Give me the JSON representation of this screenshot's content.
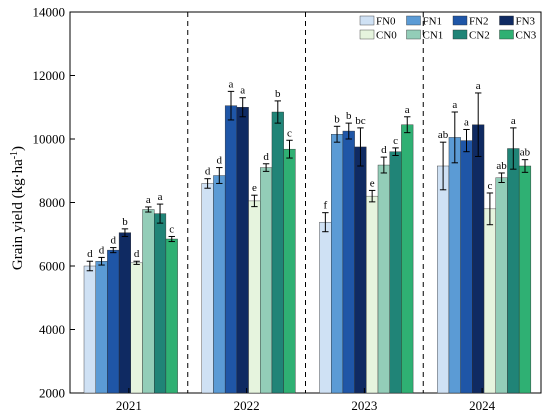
{
  "chart_data": {
    "type": "bar",
    "categories": [
      "2021",
      "2022",
      "2023",
      "2024"
    ],
    "ylabel_main": "Grain yield (kg·ha",
    "ylabel_sup": "-1",
    "ylabel_close": ")",
    "xlabel": "",
    "ylim": [
      2000,
      14000
    ],
    "yticks": [
      2000,
      4000,
      6000,
      8000,
      10000,
      12000,
      14000
    ],
    "grid": false,
    "legend_position": "top-right",
    "series": [
      {
        "name": "FN0",
        "color": "#cfe1f4",
        "values": [
          6000,
          8600,
          7380,
          9150
        ],
        "errors": [
          150,
          150,
          300,
          750
        ],
        "sig": [
          "d",
          "d",
          "f",
          "ab"
        ]
      },
      {
        "name": "FN1",
        "color": "#5b9bd5",
        "values": [
          6150,
          8850,
          10150,
          10050
        ],
        "errors": [
          120,
          250,
          250,
          800
        ],
        "sig": [
          "d",
          "d",
          "b",
          "a"
        ]
      },
      {
        "name": "FN2",
        "color": "#1f56a7",
        "values": [
          6500,
          11050,
          10250,
          9950
        ],
        "errors": [
          80,
          450,
          250,
          350
        ],
        "sig": [
          "d",
          "a",
          "b",
          "a"
        ]
      },
      {
        "name": "FN3",
        "color": "#0f2a62",
        "values": [
          7050,
          11000,
          9750,
          10450
        ],
        "errors": [
          120,
          300,
          600,
          1000
        ],
        "sig": [
          "b",
          "a",
          "bc",
          "a"
        ]
      },
      {
        "name": "CN0",
        "color": "#e6f4de",
        "values": [
          6100,
          8050,
          8200,
          7800
        ],
        "errors": [
          50,
          180,
          180,
          500
        ],
        "sig": [
          "d",
          "e",
          "e",
          "c"
        ]
      },
      {
        "name": "CN1",
        "color": "#93cdb8",
        "values": [
          7780,
          9100,
          9180,
          8780
        ],
        "errors": [
          80,
          120,
          250,
          150
        ],
        "sig": [
          "a",
          "d",
          "d",
          "ab"
        ]
      },
      {
        "name": "CN2",
        "color": "#208477",
        "values": [
          7650,
          10850,
          9600,
          9700
        ],
        "errors": [
          300,
          350,
          120,
          650
        ],
        "sig": [
          "a",
          "b",
          "c",
          "a"
        ]
      },
      {
        "name": "CN3",
        "color": "#2fb073",
        "values": [
          6850,
          9680,
          10450,
          9150
        ],
        "errors": [
          80,
          280,
          250,
          200
        ],
        "sig": [
          "c",
          "c",
          "a",
          "ab"
        ]
      }
    ]
  }
}
